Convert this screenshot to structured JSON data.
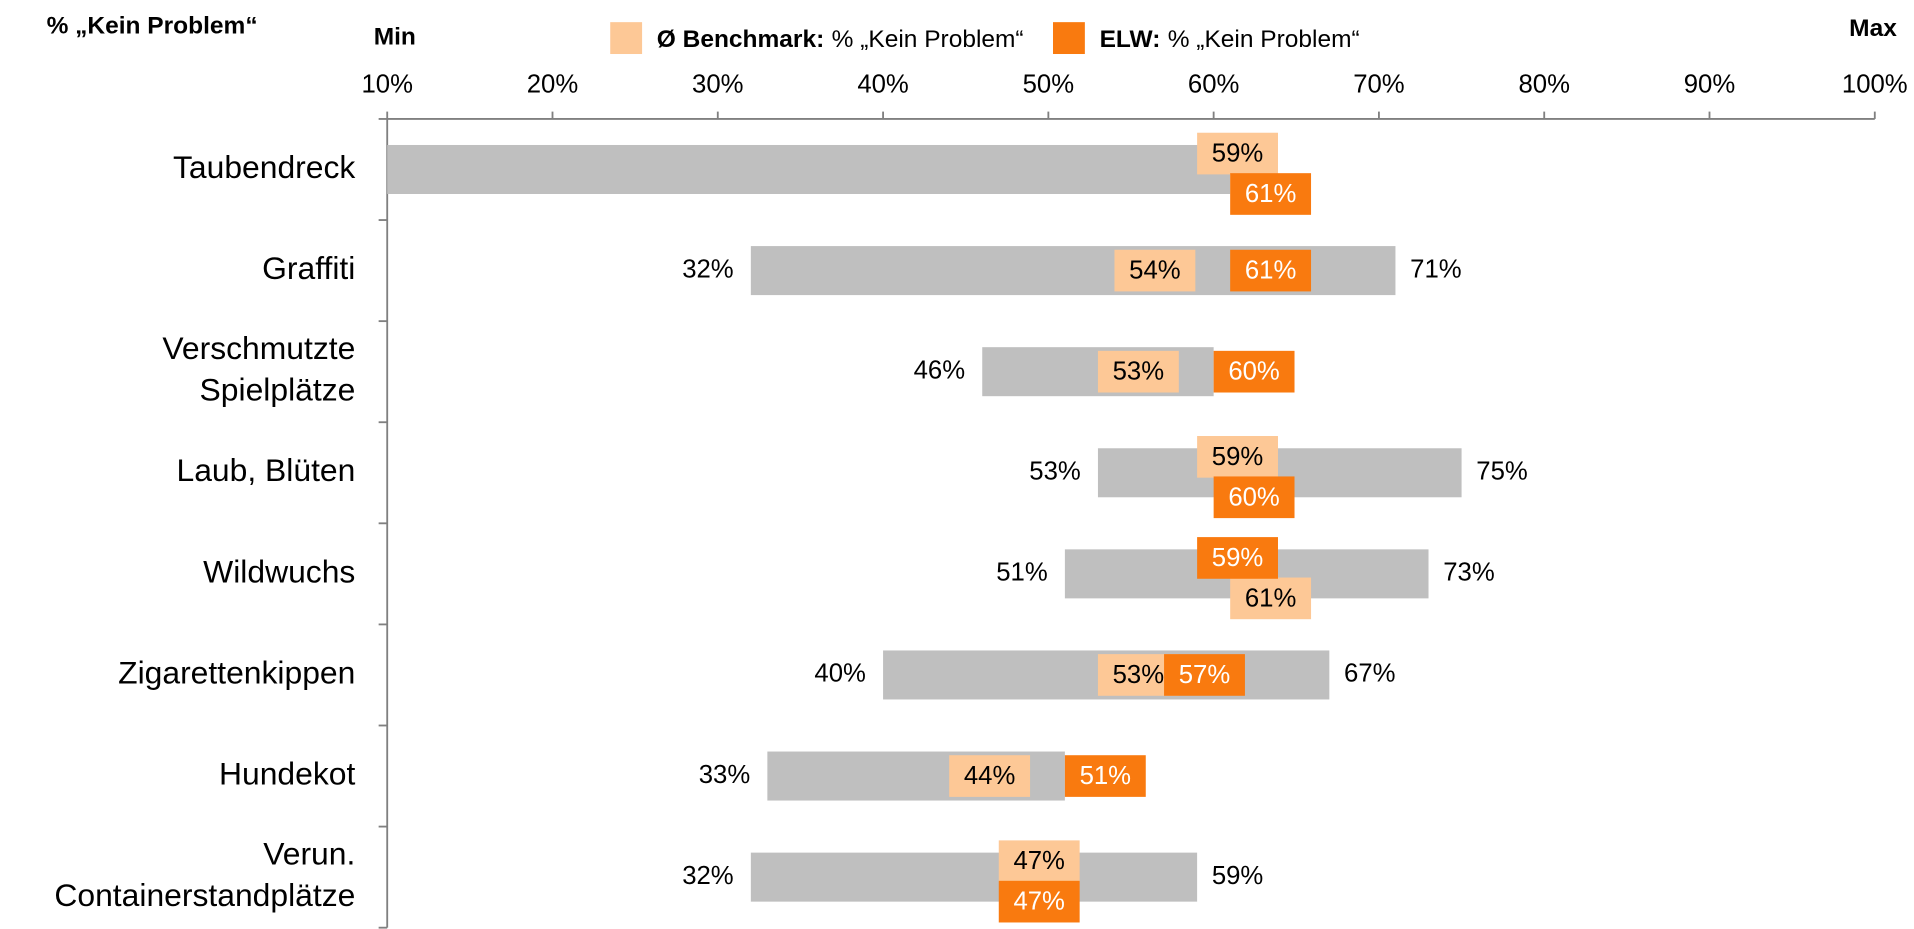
{
  "chart_data": {
    "type": "range_bar",
    "axis_label": "% „Kein Problem“",
    "min_label": "Min",
    "max_label": "Max",
    "legend_note": "% „Kein Problem“",
    "categories": [
      "Taubendreck",
      "Graffiti",
      "Verschmutzte Spielplätze",
      "Laub, Blüten",
      "Wildwuchs",
      "Zigarettenkippen",
      "Hundekot",
      "Verun. Containerstandplätze"
    ],
    "xlim": [
      10,
      100
    ],
    "xticks": [
      {
        "value": 10,
        "label": "10%"
      },
      {
        "value": 20,
        "label": "20%"
      },
      {
        "value": 30,
        "label": "30%"
      },
      {
        "value": 40,
        "label": "40%"
      },
      {
        "value": 50,
        "label": "50%"
      },
      {
        "value": 60,
        "label": "60%"
      },
      {
        "value": 70,
        "label": "70%"
      },
      {
        "value": 80,
        "label": "80%"
      },
      {
        "value": 90,
        "label": "90%"
      },
      {
        "value": 100,
        "label": "100%"
      }
    ],
    "range": {
      "color": "#bfbfbf",
      "min": [
        10,
        32,
        46,
        53,
        51,
        40,
        33,
        32
      ],
      "min_labels": [
        null,
        "32%",
        "46%",
        "53%",
        "51%",
        "40%",
        "33%",
        "32%"
      ],
      "max": [
        61,
        71,
        60,
        75,
        73,
        67,
        51,
        59
      ],
      "max_labels": [
        null,
        "71%",
        null,
        "75%",
        "73%",
        "67%",
        null,
        "59%"
      ]
    },
    "series": [
      {
        "name": "Ø Benchmark:",
        "color": "#fdc896",
        "text_color": "#000000",
        "values": [
          59,
          54,
          53,
          59,
          61,
          53,
          44,
          47
        ],
        "value_labels": [
          "59%",
          "54%",
          "53%",
          "59%",
          "61%",
          "53%",
          "44%",
          "47%"
        ]
      },
      {
        "name": "ELW:",
        "color": "#f97a0f",
        "text_color": "#ffffff",
        "values": [
          61,
          61,
          60,
          60,
          59,
          57,
          51,
          47
        ],
        "value_labels": [
          "61%",
          "61%",
          "60%",
          "60%",
          "59%",
          "57%",
          "51%",
          "47%"
        ]
      }
    ]
  }
}
